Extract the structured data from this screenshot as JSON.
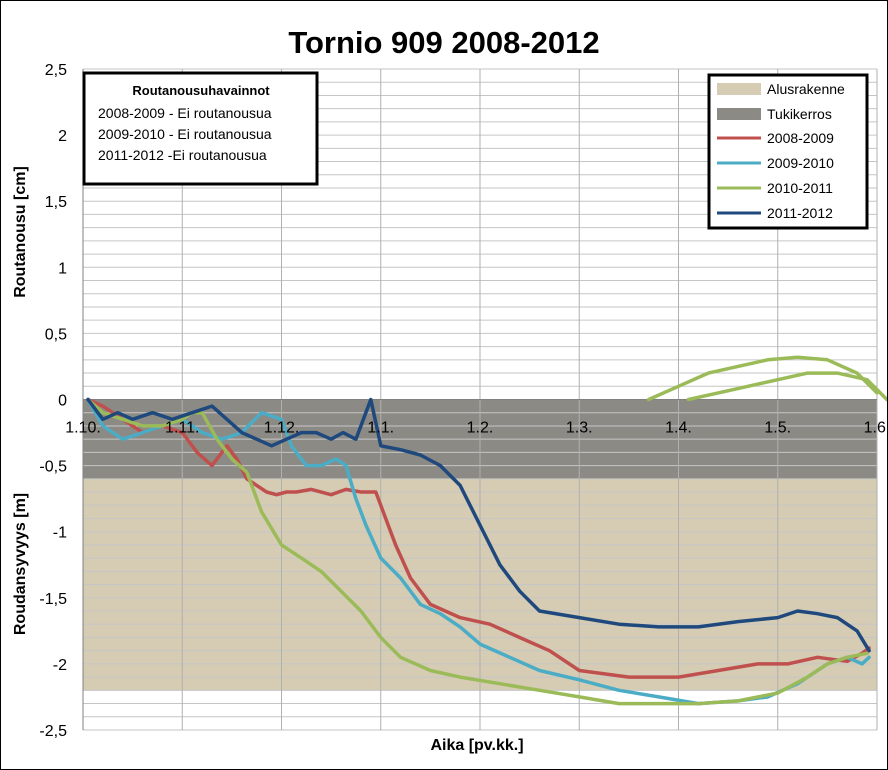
{
  "chart_data": {
    "type": "line",
    "title": "Tornio 909 2008-2012",
    "xlabel": "Aika [pv.kk.]",
    "ylabel_upper": "Routanousu  [cm]",
    "ylabel_lower": "Roudansyvyys [m]",
    "ylim": [
      -2.5,
      2.5
    ],
    "yticks": [
      "2,5",
      "2",
      "1,5",
      "1",
      "0,5",
      "0",
      "-0,5",
      "-1",
      "-1,5",
      "-2",
      "-2,5"
    ],
    "ytick_values": [
      2.5,
      2,
      1.5,
      1,
      0.5,
      0,
      -0.5,
      -1,
      -1.5,
      -2,
      -2.5
    ],
    "xlim": [
      0,
      8
    ],
    "xticks": [
      "1.10.",
      "1.11.",
      "1.12.",
      "1.1.",
      "1.2.",
      "1.3.",
      "1.4.",
      "1.5.",
      "1.6."
    ],
    "xtick_values": [
      0,
      1,
      2,
      3,
      4,
      5,
      6,
      7,
      8
    ],
    "grid": true,
    "layers": [
      {
        "name": "Alusrakenne",
        "from": -0.6,
        "to": -2.2,
        "color": "#d5ccb3"
      },
      {
        "name": "Tukikerros",
        "from": 0,
        "to": -0.6,
        "color": "#8c8a85"
      }
    ],
    "series": [
      {
        "name": "2008-2009",
        "color": "#c0504d",
        "x": [
          0.05,
          0.2,
          0.4,
          0.6,
          0.8,
          1.0,
          1.15,
          1.3,
          1.45,
          1.55,
          1.65,
          1.75,
          1.85,
          1.95,
          2.05,
          2.15,
          2.3,
          2.5,
          2.65,
          2.8,
          2.95,
          3.05,
          3.15,
          3.3,
          3.5,
          3.8,
          4.1,
          4.4,
          4.7,
          5.0,
          5.5,
          6.0,
          6.4,
          6.8,
          7.1,
          7.4,
          7.7,
          7.85,
          7.92
        ],
        "y": [
          0,
          -0.05,
          -0.15,
          -0.25,
          -0.2,
          -0.25,
          -0.4,
          -0.5,
          -0.35,
          -0.45,
          -0.6,
          -0.65,
          -0.7,
          -0.72,
          -0.7,
          -0.7,
          -0.68,
          -0.72,
          -0.68,
          -0.7,
          -0.7,
          -0.9,
          -1.1,
          -1.35,
          -1.55,
          -1.65,
          -1.7,
          -1.8,
          -1.9,
          -2.05,
          -2.1,
          -2.1,
          -2.05,
          -2.0,
          -2.0,
          -1.95,
          -1.98,
          -1.92,
          -1.88
        ]
      },
      {
        "name": "2009-2010",
        "color": "#4bacc6",
        "x": [
          0.05,
          0.2,
          0.4,
          0.6,
          0.8,
          1.0,
          1.2,
          1.4,
          1.6,
          1.8,
          2.0,
          2.1,
          2.25,
          2.4,
          2.55,
          2.65,
          2.75,
          2.85,
          3.0,
          3.2,
          3.4,
          3.6,
          3.8,
          4.0,
          4.3,
          4.6,
          5.0,
          5.4,
          5.8,
          6.2,
          6.6,
          6.9,
          7.2,
          7.5,
          7.7,
          7.85,
          7.92
        ],
        "y": [
          0,
          -0.2,
          -0.3,
          -0.25,
          -0.2,
          -0.15,
          -0.25,
          -0.3,
          -0.25,
          -0.1,
          -0.15,
          -0.35,
          -0.5,
          -0.5,
          -0.45,
          -0.5,
          -0.75,
          -0.95,
          -1.2,
          -1.35,
          -1.55,
          -1.62,
          -1.72,
          -1.85,
          -1.95,
          -2.05,
          -2.12,
          -2.2,
          -2.25,
          -2.3,
          -2.28,
          -2.25,
          -2.15,
          -2.0,
          -1.95,
          -2.0,
          -1.95
        ]
      },
      {
        "name": "2010-2011",
        "color": "#9bbb59",
        "x": [
          0.05,
          0.2,
          0.4,
          0.6,
          0.8,
          1.0,
          1.1,
          1.2,
          1.35,
          1.5,
          1.65,
          1.8,
          2.0,
          2.2,
          2.4,
          2.6,
          2.8,
          3.0,
          3.2,
          3.5,
          3.8,
          4.2,
          4.6,
          5.0,
          5.4,
          5.8,
          6.2,
          6.6,
          7.0,
          7.3,
          7.5,
          7.7,
          7.9
        ],
        "y": [
          0,
          -0.1,
          -0.15,
          -0.2,
          -0.2,
          -0.15,
          -0.1,
          -0.1,
          -0.3,
          -0.45,
          -0.55,
          -0.85,
          -1.1,
          -1.2,
          -1.3,
          -1.45,
          -1.6,
          -1.8,
          -1.95,
          -2.05,
          -2.1,
          -2.15,
          -2.2,
          -2.25,
          -2.3,
          -2.3,
          -2.3,
          -2.28,
          -2.22,
          -2.1,
          -2.0,
          -1.95,
          -1.92
        ]
      },
      {
        "name": "2011-2012",
        "color": "#1f497d",
        "x": [
          0.05,
          0.2,
          0.35,
          0.5,
          0.7,
          0.9,
          1.1,
          1.3,
          1.45,
          1.6,
          1.75,
          1.9,
          2.05,
          2.2,
          2.35,
          2.5,
          2.62,
          2.75,
          2.9,
          3.0,
          3.2,
          3.4,
          3.6,
          3.8,
          4.0,
          4.2,
          4.4,
          4.6,
          5.0,
          5.4,
          5.8,
          6.2,
          6.6,
          7.0,
          7.2,
          7.4,
          7.6,
          7.8,
          7.92
        ],
        "y": [
          0,
          -0.15,
          -0.1,
          -0.15,
          -0.1,
          -0.15,
          -0.1,
          -0.05,
          -0.15,
          -0.25,
          -0.3,
          -0.35,
          -0.3,
          -0.25,
          -0.25,
          -0.3,
          -0.25,
          -0.3,
          0,
          -0.35,
          -0.38,
          -0.42,
          -0.5,
          -0.65,
          -0.95,
          -1.25,
          -1.45,
          -1.6,
          -1.65,
          -1.7,
          -1.72,
          -1.72,
          -1.68,
          -1.65,
          -1.6,
          -1.62,
          -1.65,
          -1.75,
          -1.9
        ]
      },
      {
        "name": "",
        "color": "#9bbb59",
        "x": [
          5.7,
          6.0,
          6.3,
          6.6,
          6.9,
          7.2,
          7.5,
          7.8,
          8.0
        ],
        "y": [
          0,
          0.1,
          0.2,
          0.25,
          0.3,
          0.32,
          0.3,
          0.2,
          0.05
        ]
      },
      {
        "name": "",
        "color": "#9bbb59",
        "x": [
          6.1,
          6.4,
          6.7,
          7.0,
          7.3,
          7.6,
          7.9,
          8.1
        ],
        "y": [
          0,
          0.05,
          0.1,
          0.15,
          0.2,
          0.2,
          0.15,
          0
        ]
      }
    ],
    "legend_position": "top-right",
    "legend": [
      "Alusrakenne",
      "Tukikerros",
      "2008-2009",
      "2009-2010",
      "2010-2011",
      "2011-2012"
    ],
    "annotation": {
      "title": "Routanousuhavainnot",
      "lines": [
        "2008-2009 - Ei routanousua",
        "2009-2010 - Ei routanousua",
        "2011-2012 -Ei routanousua"
      ]
    }
  }
}
